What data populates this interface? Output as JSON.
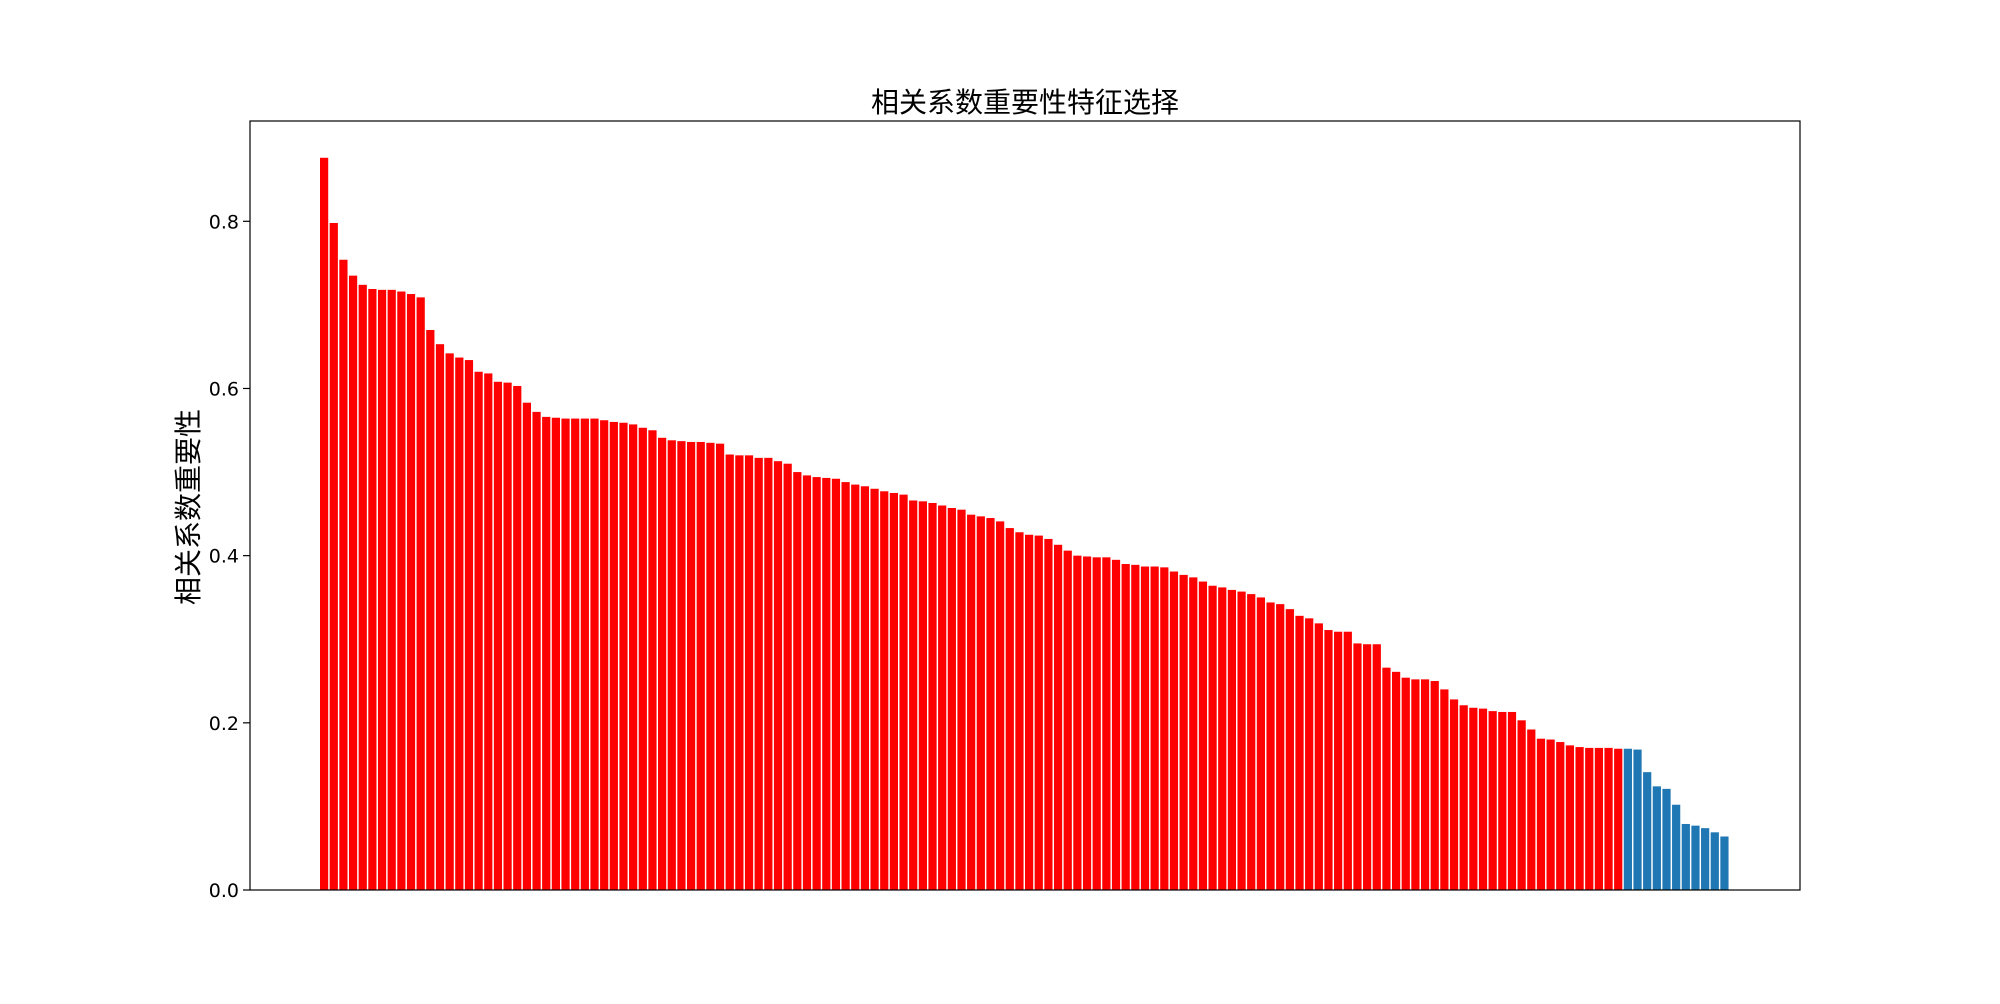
{
  "chart_data": {
    "type": "bar",
    "title": "相关系数重要性特征选择",
    "xlabel": "",
    "ylabel": "相关系数重要性",
    "ylim": [
      0,
      0.92
    ],
    "yticks": [
      "0.0",
      "0.2",
      "0.4",
      "0.6",
      "0.8"
    ],
    "grid": false,
    "legend": "none",
    "colors": {
      "selected": "#ff0000",
      "unselected": "#1f77b4",
      "axis": "#000000"
    },
    "selected_count": 135,
    "values": [
      0.876,
      0.798,
      0.754,
      0.735,
      0.724,
      0.719,
      0.718,
      0.718,
      0.716,
      0.713,
      0.709,
      0.67,
      0.653,
      0.642,
      0.637,
      0.634,
      0.62,
      0.618,
      0.608,
      0.607,
      0.603,
      0.583,
      0.572,
      0.566,
      0.565,
      0.564,
      0.564,
      0.564,
      0.564,
      0.562,
      0.56,
      0.559,
      0.557,
      0.553,
      0.55,
      0.541,
      0.538,
      0.537,
      0.536,
      0.536,
      0.535,
      0.534,
      0.521,
      0.52,
      0.52,
      0.517,
      0.517,
      0.513,
      0.51,
      0.5,
      0.496,
      0.494,
      0.493,
      0.492,
      0.488,
      0.485,
      0.483,
      0.48,
      0.477,
      0.475,
      0.473,
      0.466,
      0.465,
      0.463,
      0.46,
      0.457,
      0.455,
      0.449,
      0.447,
      0.445,
      0.441,
      0.433,
      0.428,
      0.425,
      0.424,
      0.42,
      0.413,
      0.406,
      0.4,
      0.399,
      0.398,
      0.398,
      0.395,
      0.39,
      0.389,
      0.387,
      0.387,
      0.386,
      0.381,
      0.377,
      0.374,
      0.369,
      0.364,
      0.362,
      0.359,
      0.357,
      0.354,
      0.35,
      0.344,
      0.342,
      0.336,
      0.328,
      0.325,
      0.319,
      0.311,
      0.309,
      0.309,
      0.295,
      0.294,
      0.294,
      0.266,
      0.261,
      0.254,
      0.252,
      0.252,
      0.25,
      0.24,
      0.228,
      0.221,
      0.218,
      0.217,
      0.214,
      0.213,
      0.213,
      0.203,
      0.192,
      0.181,
      0.18,
      0.177,
      0.173,
      0.171,
      0.17,
      0.17,
      0.17,
      0.169,
      0.169,
      0.168,
      0.141,
      0.124,
      0.121,
      0.102,
      0.079,
      0.077,
      0.074,
      0.069,
      0.064
    ]
  }
}
